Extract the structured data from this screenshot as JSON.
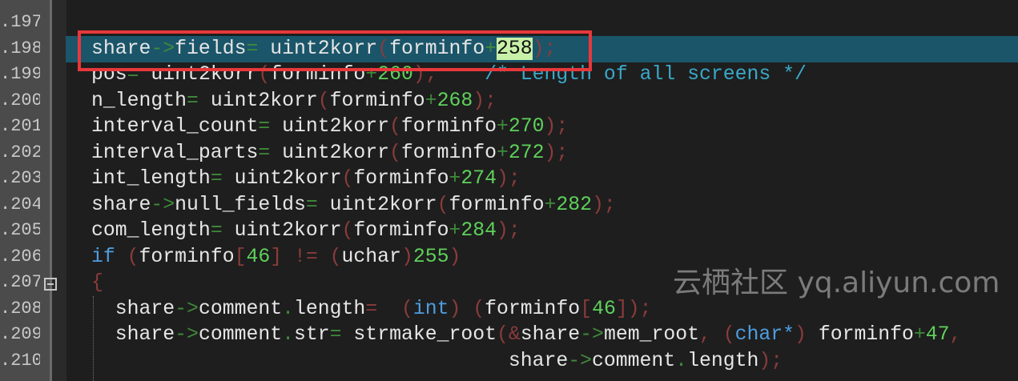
{
  "editor": {
    "highlight_color": "#1b5569",
    "annotation_color": "#e8383c",
    "lines": [
      {
        "num": ".197",
        "tokens": []
      },
      {
        "num": ".198",
        "tokens": [
          {
            "t": "share",
            "c": ""
          },
          {
            "t": "->",
            "c": "op"
          },
          {
            "t": "fields",
            "c": ""
          },
          {
            "t": "=",
            "c": "op"
          },
          {
            "t": " uint2korr",
            "c": ""
          },
          {
            "t": "(",
            "c": "par"
          },
          {
            "t": "forminfo",
            "c": ""
          },
          {
            "t": "+",
            "c": "op"
          },
          {
            "t": "258",
            "c": "sel"
          },
          {
            "t": ");",
            "c": "par"
          }
        ]
      },
      {
        "num": ".199",
        "tokens": [
          {
            "t": "pos",
            "c": ""
          },
          {
            "t": "=",
            "c": "op"
          },
          {
            "t": " uint2korr",
            "c": ""
          },
          {
            "t": "(",
            "c": "par"
          },
          {
            "t": "forminfo",
            "c": ""
          },
          {
            "t": "+",
            "c": "op"
          },
          {
            "t": "260",
            "c": "num"
          },
          {
            "t": ");",
            "c": "par"
          },
          {
            "t": "    /* Length of all screens */",
            "c": "cm"
          }
        ]
      },
      {
        "num": ".200",
        "tokens": [
          {
            "t": "n_length",
            "c": ""
          },
          {
            "t": "=",
            "c": "op"
          },
          {
            "t": " uint2korr",
            "c": ""
          },
          {
            "t": "(",
            "c": "par"
          },
          {
            "t": "forminfo",
            "c": ""
          },
          {
            "t": "+",
            "c": "op"
          },
          {
            "t": "268",
            "c": "num"
          },
          {
            "t": ");",
            "c": "par"
          }
        ]
      },
      {
        "num": ".201",
        "tokens": [
          {
            "t": "interval_count",
            "c": ""
          },
          {
            "t": "=",
            "c": "op"
          },
          {
            "t": " uint2korr",
            "c": ""
          },
          {
            "t": "(",
            "c": "par"
          },
          {
            "t": "forminfo",
            "c": ""
          },
          {
            "t": "+",
            "c": "op"
          },
          {
            "t": "270",
            "c": "num"
          },
          {
            "t": ");",
            "c": "par"
          }
        ]
      },
      {
        "num": ".202",
        "tokens": [
          {
            "t": "interval_parts",
            "c": ""
          },
          {
            "t": "=",
            "c": "op"
          },
          {
            "t": " uint2korr",
            "c": ""
          },
          {
            "t": "(",
            "c": "par"
          },
          {
            "t": "forminfo",
            "c": ""
          },
          {
            "t": "+",
            "c": "op"
          },
          {
            "t": "272",
            "c": "num"
          },
          {
            "t": ");",
            "c": "par"
          }
        ]
      },
      {
        "num": ".203",
        "tokens": [
          {
            "t": "int_length",
            "c": ""
          },
          {
            "t": "=",
            "c": "op"
          },
          {
            "t": " uint2korr",
            "c": ""
          },
          {
            "t": "(",
            "c": "par"
          },
          {
            "t": "forminfo",
            "c": ""
          },
          {
            "t": "+",
            "c": "op"
          },
          {
            "t": "274",
            "c": "num"
          },
          {
            "t": ");",
            "c": "par"
          }
        ]
      },
      {
        "num": ".204",
        "tokens": [
          {
            "t": "share",
            "c": ""
          },
          {
            "t": "->",
            "c": "op"
          },
          {
            "t": "null_fields",
            "c": ""
          },
          {
            "t": "=",
            "c": "op"
          },
          {
            "t": " uint2korr",
            "c": ""
          },
          {
            "t": "(",
            "c": "par"
          },
          {
            "t": "forminfo",
            "c": ""
          },
          {
            "t": "+",
            "c": "op"
          },
          {
            "t": "282",
            "c": "num"
          },
          {
            "t": ");",
            "c": "par"
          }
        ]
      },
      {
        "num": ".205",
        "tokens": [
          {
            "t": "com_length",
            "c": ""
          },
          {
            "t": "=",
            "c": "op"
          },
          {
            "t": " uint2korr",
            "c": ""
          },
          {
            "t": "(",
            "c": "par"
          },
          {
            "t": "forminfo",
            "c": ""
          },
          {
            "t": "+",
            "c": "op"
          },
          {
            "t": "284",
            "c": "num"
          },
          {
            "t": ");",
            "c": "par"
          }
        ]
      },
      {
        "num": ".206",
        "tokens": [
          {
            "t": "if",
            "c": "kw"
          },
          {
            "t": " (",
            "c": "par"
          },
          {
            "t": "forminfo",
            "c": ""
          },
          {
            "t": "[",
            "c": "par"
          },
          {
            "t": "46",
            "c": "num"
          },
          {
            "t": "] != (",
            "c": "par"
          },
          {
            "t": "uchar",
            "c": ""
          },
          {
            "t": ")",
            "c": "par"
          },
          {
            "t": "255",
            "c": "num"
          },
          {
            "t": ")",
            "c": "par"
          }
        ]
      },
      {
        "num": ".207",
        "tokens": [
          {
            "t": "{",
            "c": "par"
          }
        ]
      },
      {
        "num": ".208",
        "tokens": [
          {
            "t": "  share",
            "c": ""
          },
          {
            "t": "->",
            "c": "op"
          },
          {
            "t": "comment",
            "c": ""
          },
          {
            "t": ".",
            "c": "op"
          },
          {
            "t": "length",
            "c": ""
          },
          {
            "t": "=  (",
            "c": "par"
          },
          {
            "t": "int",
            "c": "kw"
          },
          {
            "t": ") (",
            "c": "par"
          },
          {
            "t": "forminfo",
            "c": ""
          },
          {
            "t": "[",
            "c": "par"
          },
          {
            "t": "46",
            "c": "num"
          },
          {
            "t": "]);",
            "c": "par"
          }
        ]
      },
      {
        "num": ".209",
        "tokens": [
          {
            "t": "  share",
            "c": ""
          },
          {
            "t": "->",
            "c": "op"
          },
          {
            "t": "comment",
            "c": ""
          },
          {
            "t": ".",
            "c": "op"
          },
          {
            "t": "str",
            "c": ""
          },
          {
            "t": "=",
            "c": "op"
          },
          {
            "t": " strmake_root",
            "c": ""
          },
          {
            "t": "(&",
            "c": "par"
          },
          {
            "t": "share",
            "c": ""
          },
          {
            "t": "->",
            "c": "op"
          },
          {
            "t": "mem_root",
            "c": ""
          },
          {
            "t": ", (",
            "c": "par"
          },
          {
            "t": "char*",
            "c": "kw"
          },
          {
            "t": ") ",
            "c": "par"
          },
          {
            "t": "forminfo",
            "c": ""
          },
          {
            "t": "+",
            "c": "op"
          },
          {
            "t": "47",
            "c": "num"
          },
          {
            "t": ",",
            "c": "par"
          }
        ]
      },
      {
        "num": ".210",
        "tokens": [
          {
            "t": "                                   share",
            "c": ""
          },
          {
            "t": "->",
            "c": "op"
          },
          {
            "t": "comment",
            "c": ""
          },
          {
            "t": ".",
            "c": "op"
          },
          {
            "t": "length",
            "c": ""
          },
          {
            "t": ");",
            "c": "par"
          }
        ]
      }
    ]
  },
  "watermark": "云栖社区 yq.aliyun.com"
}
